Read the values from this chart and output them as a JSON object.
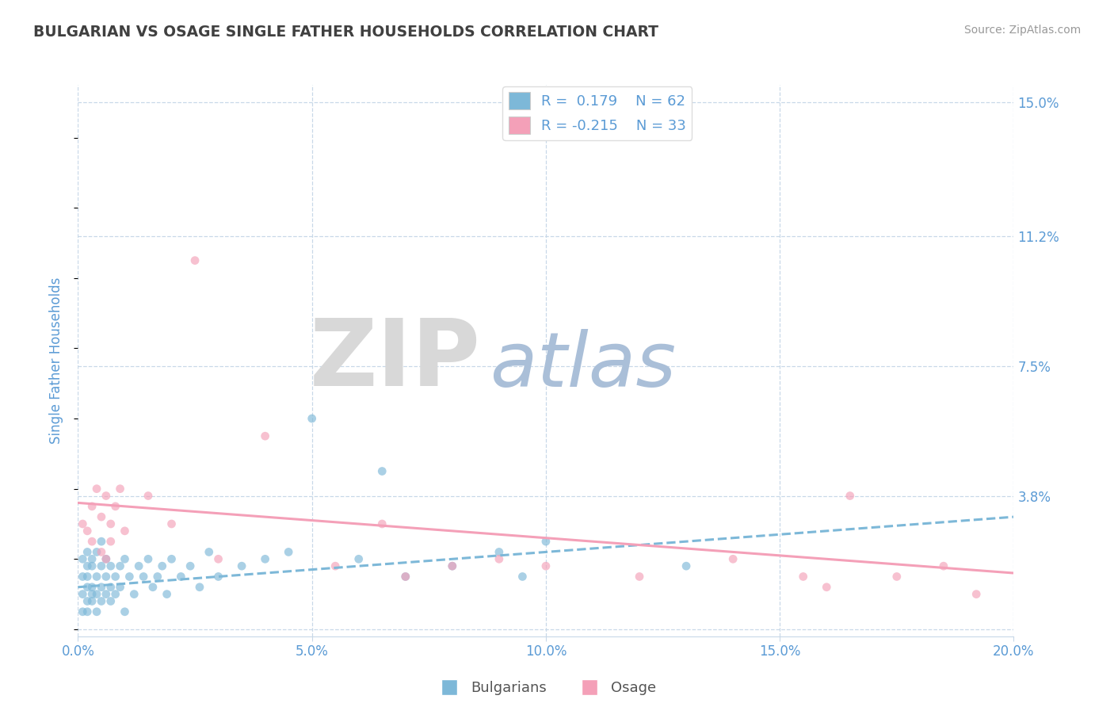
{
  "title": "BULGARIAN VS OSAGE SINGLE FATHER HOUSEHOLDS CORRELATION CHART",
  "source": "Source: ZipAtlas.com",
  "ylabel": "Single Father Households",
  "watermark_zip": "ZIP",
  "watermark_atlas": "atlas",
  "xlim": [
    0.0,
    0.2
  ],
  "ylim": [
    -0.002,
    0.155
  ],
  "yticks": [
    0.0,
    0.038,
    0.075,
    0.112,
    0.15
  ],
  "ytick_labels": [
    "",
    "3.8%",
    "7.5%",
    "11.2%",
    "15.0%"
  ],
  "xticks": [
    0.0,
    0.05,
    0.1,
    0.15,
    0.2
  ],
  "xtick_labels": [
    "0.0%",
    "5.0%",
    "10.0%",
    "15.0%",
    "20.0%"
  ],
  "blue_color": "#7db8d8",
  "pink_color": "#f4a0b8",
  "axis_color": "#5b9bd5",
  "grid_color": "#c8d8e8",
  "bg_color": "#ffffff",
  "watermark_zip_color": "#d8d8d8",
  "watermark_atlas_color": "#aabfd8",
  "title_color": "#404040",
  "source_color": "#999999",
  "legend_line1": "R =  0.179    N = 62",
  "legend_line2": "R = -0.215    N = 33",
  "bottom_legend_1": "Bulgarians",
  "bottom_legend_2": "Osage",
  "blue_scatter_x": [
    0.001,
    0.001,
    0.001,
    0.001,
    0.002,
    0.002,
    0.002,
    0.002,
    0.002,
    0.002,
    0.003,
    0.003,
    0.003,
    0.003,
    0.003,
    0.004,
    0.004,
    0.004,
    0.004,
    0.005,
    0.005,
    0.005,
    0.005,
    0.006,
    0.006,
    0.006,
    0.007,
    0.007,
    0.007,
    0.008,
    0.008,
    0.009,
    0.009,
    0.01,
    0.01,
    0.011,
    0.012,
    0.013,
    0.014,
    0.015,
    0.016,
    0.017,
    0.018,
    0.019,
    0.02,
    0.022,
    0.024,
    0.026,
    0.028,
    0.03,
    0.035,
    0.04,
    0.045,
    0.05,
    0.06,
    0.065,
    0.07,
    0.08,
    0.09,
    0.095,
    0.1,
    0.13
  ],
  "blue_scatter_y": [
    0.01,
    0.015,
    0.02,
    0.005,
    0.012,
    0.018,
    0.008,
    0.022,
    0.015,
    0.005,
    0.01,
    0.018,
    0.012,
    0.02,
    0.008,
    0.015,
    0.022,
    0.01,
    0.005,
    0.012,
    0.018,
    0.008,
    0.025,
    0.01,
    0.015,
    0.02,
    0.012,
    0.018,
    0.008,
    0.015,
    0.01,
    0.018,
    0.012,
    0.02,
    0.005,
    0.015,
    0.01,
    0.018,
    0.015,
    0.02,
    0.012,
    0.015,
    0.018,
    0.01,
    0.02,
    0.015,
    0.018,
    0.012,
    0.022,
    0.015,
    0.018,
    0.02,
    0.022,
    0.06,
    0.02,
    0.045,
    0.015,
    0.018,
    0.022,
    0.015,
    0.025,
    0.018
  ],
  "pink_scatter_x": [
    0.001,
    0.002,
    0.003,
    0.003,
    0.004,
    0.005,
    0.005,
    0.006,
    0.006,
    0.007,
    0.007,
    0.008,
    0.009,
    0.01,
    0.015,
    0.02,
    0.025,
    0.03,
    0.04,
    0.055,
    0.065,
    0.07,
    0.08,
    0.09,
    0.1,
    0.12,
    0.14,
    0.155,
    0.16,
    0.165,
    0.175,
    0.185,
    0.192
  ],
  "pink_scatter_y": [
    0.03,
    0.028,
    0.035,
    0.025,
    0.04,
    0.022,
    0.032,
    0.038,
    0.02,
    0.03,
    0.025,
    0.035,
    0.04,
    0.028,
    0.038,
    0.03,
    0.105,
    0.02,
    0.055,
    0.018,
    0.03,
    0.015,
    0.018,
    0.02,
    0.018,
    0.015,
    0.02,
    0.015,
    0.012,
    0.038,
    0.015,
    0.018,
    0.01
  ],
  "blue_trend_x": [
    0.0,
    0.2
  ],
  "blue_trend_y": [
    0.012,
    0.032
  ],
  "pink_trend_x": [
    0.0,
    0.2
  ],
  "pink_trend_y": [
    0.036,
    0.016
  ]
}
